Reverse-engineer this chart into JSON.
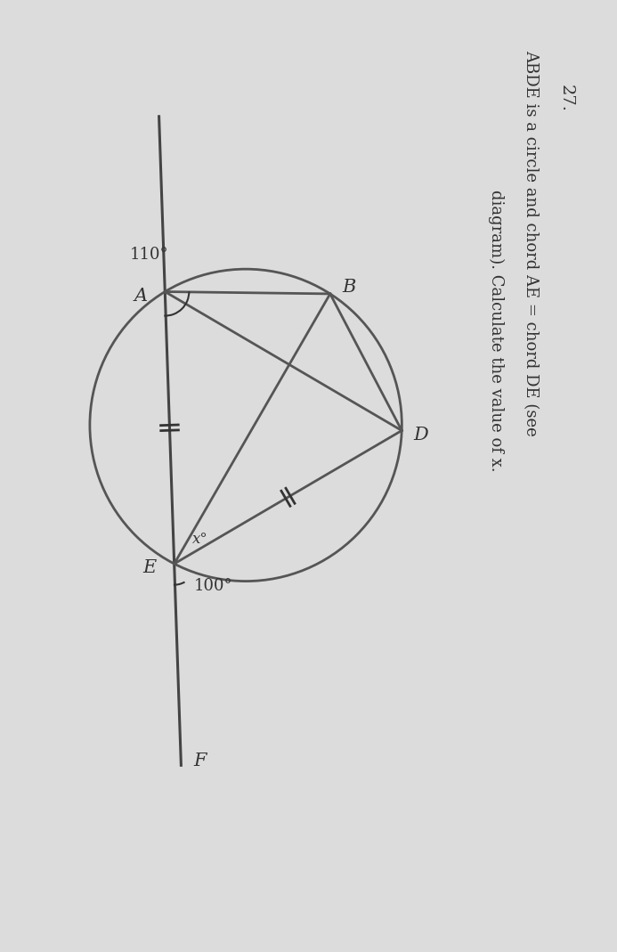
{
  "background_color": "#dcdcdc",
  "circle_color": "#555555",
  "line_color": "#444444",
  "text_color": "#333333",
  "angle_110": "110°",
  "angle_100": "100°",
  "angle_x": "x°",
  "label_A": "A",
  "label_B": "B",
  "label_D": "D",
  "label_E": "E",
  "label_F": "F",
  "question_number": "27.",
  "question_line1": "ABDE is a circle and chord AE = chord DE (see",
  "question_line2": "diagram). Calculate the value of x."
}
